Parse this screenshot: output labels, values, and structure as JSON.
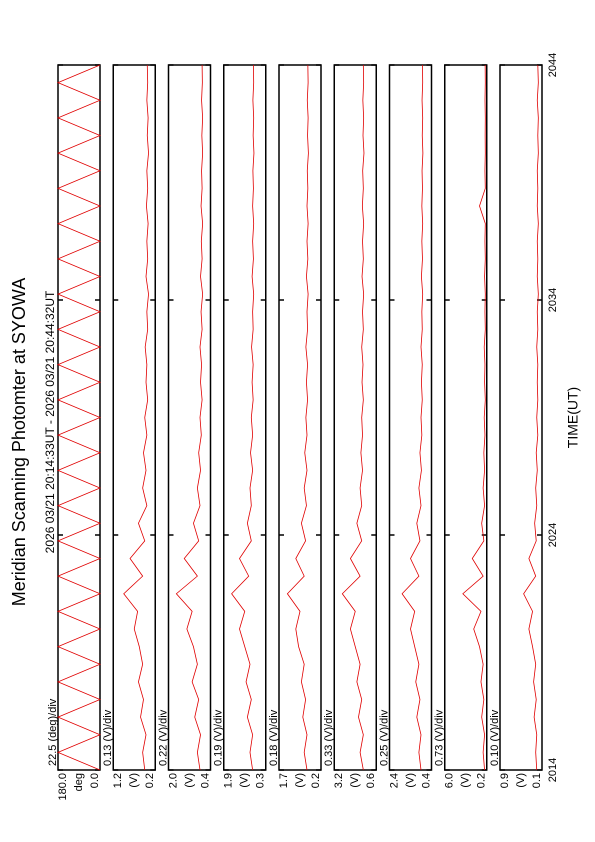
{
  "chart_data": [
    {
      "type": "line",
      "title": "Meridian Scanning Photomter at SYOWA",
      "subtitle": "2026 03/21 20:14:33UT - 2026 03/21 20:44:32UT",
      "scale": "22.5 (deg)/div",
      "ylabel": "deg",
      "color": "#e00000",
      "ylim": [
        0,
        180
      ],
      "yticks": [
        {
          "value": 0,
          "label": "0.0"
        },
        {
          "value": 180,
          "label": "180.0"
        }
      ],
      "x": [
        0,
        0.75,
        1.5,
        2.25,
        3,
        3.75,
        4.5,
        5.25,
        6,
        6.75,
        7.5,
        8.25,
        9,
        9.75,
        10.5,
        11.25,
        12,
        12.75,
        13.5,
        14.25,
        15,
        15.75,
        16.5,
        17.25,
        18,
        18.75,
        19.5,
        20.25,
        21,
        21.75,
        22.5,
        23.25,
        24,
        24.75,
        25.5,
        26.25,
        27,
        27.75,
        28.5,
        29.25,
        30
      ],
      "values": [
        0,
        180,
        0,
        180,
        0,
        180,
        0,
        180,
        0,
        180,
        0,
        180,
        0,
        180,
        0,
        180,
        0,
        180,
        0,
        180,
        0,
        180,
        0,
        180,
        0,
        180,
        0,
        180,
        0,
        180,
        0,
        180,
        0,
        180,
        0,
        180,
        0,
        180,
        0,
        180,
        0
      ]
    },
    {
      "type": "line",
      "scale": "0.13 (V)/div",
      "ylabel": "(V)",
      "color": "#e00000",
      "ylim": [
        0.2,
        1.2
      ],
      "yticks": [
        0.2,
        1.2
      ],
      "x": [
        0,
        0.75,
        1.5,
        2.25,
        3,
        3.75,
        4.5,
        5.25,
        6,
        6.75,
        7.5,
        8.25,
        9,
        9.75,
        10.5,
        11.25,
        12,
        12.75,
        13.5,
        14.25,
        15,
        15.75,
        16.5,
        17.25,
        18,
        18.75,
        19.5,
        20.25,
        21,
        21.75,
        22.5,
        23.25,
        24,
        24.75,
        25.5,
        26.25,
        27,
        27.75,
        28.5,
        29.25,
        30
      ],
      "values": [
        0.45,
        0.5,
        0.42,
        0.55,
        0.48,
        0.6,
        0.5,
        0.58,
        0.7,
        0.62,
        0.95,
        0.5,
        0.8,
        0.45,
        0.6,
        0.4,
        0.5,
        0.42,
        0.48,
        0.4,
        0.45,
        0.38,
        0.42,
        0.4,
        0.44,
        0.38,
        0.4,
        0.36,
        0.42,
        0.38,
        0.4,
        0.37,
        0.41,
        0.38,
        0.4,
        0.36,
        0.39,
        0.37,
        0.4,
        0.38,
        0.39
      ]
    },
    {
      "type": "line",
      "scale": "0.22 (V)/div",
      "ylabel": "(V)",
      "color": "#e00000",
      "ylim": [
        0.4,
        2.0
      ],
      "yticks": [
        0.4,
        {
          "value": 2,
          "label": "2.0"
        }
      ],
      "x": [
        0,
        0.75,
        1.5,
        2.25,
        3,
        3.75,
        4.5,
        5.25,
        6,
        6.75,
        7.5,
        8.25,
        9,
        9.75,
        10.5,
        11.25,
        12,
        12.75,
        13.5,
        14.25,
        15,
        15.75,
        16.5,
        17.25,
        18,
        18.75,
        19.5,
        20.25,
        21,
        21.75,
        22.5,
        23.25,
        24,
        24.75,
        25.5,
        26.25,
        27,
        27.75,
        28.5,
        29.25,
        30
      ],
      "values": [
        0.8,
        0.9,
        0.78,
        1.0,
        0.85,
        1.1,
        0.9,
        1.05,
        1.3,
        1.1,
        1.7,
        0.9,
        1.4,
        0.85,
        1.05,
        0.8,
        0.9,
        0.78,
        0.85,
        0.75,
        0.8,
        0.72,
        0.78,
        0.74,
        0.8,
        0.72,
        0.76,
        0.7,
        0.78,
        0.72,
        0.75,
        0.7,
        0.76,
        0.72,
        0.74,
        0.7,
        0.73,
        0.7,
        0.74,
        0.71,
        0.72
      ]
    },
    {
      "type": "line",
      "scale": "0.19 (V)/div",
      "ylabel": "(V)",
      "color": "#e00000",
      "ylim": [
        0.3,
        1.9
      ],
      "yticks": [
        0.3,
        1.9
      ],
      "x": [
        0,
        0.75,
        1.5,
        2.25,
        3,
        3.75,
        4.5,
        5.25,
        6,
        6.75,
        7.5,
        8.25,
        9,
        9.75,
        10.5,
        11.25,
        12,
        12.75,
        13.5,
        14.25,
        15,
        15.75,
        16.5,
        17.25,
        18,
        18.75,
        19.5,
        20.25,
        21,
        21.75,
        22.5,
        23.25,
        24,
        24.75,
        25.5,
        26.25,
        27,
        27.75,
        28.5,
        29.25,
        30
      ],
      "values": [
        0.8,
        0.9,
        0.8,
        1.0,
        0.85,
        1.05,
        0.9,
        1.1,
        1.3,
        1.1,
        1.6,
        0.95,
        1.3,
        0.85,
        1.0,
        0.85,
        0.9,
        0.8,
        0.88,
        0.8,
        0.85,
        0.78,
        0.82,
        0.78,
        0.84,
        0.78,
        0.8,
        0.76,
        0.82,
        0.77,
        0.8,
        0.76,
        0.8,
        0.77,
        0.79,
        0.75,
        0.78,
        0.76,
        0.79,
        0.76,
        0.77
      ]
    },
    {
      "type": "line",
      "scale": "0.18 (V)/div",
      "ylabel": "(V)",
      "color": "#e00000",
      "ylim": [
        0.2,
        1.7
      ],
      "yticks": [
        0.2,
        1.7
      ],
      "x": [
        0,
        0.75,
        1.5,
        2.25,
        3,
        3.75,
        4.5,
        5.25,
        6,
        6.75,
        7.5,
        8.25,
        9,
        9.75,
        10.5,
        11.25,
        12,
        12.75,
        13.5,
        14.25,
        15,
        15.75,
        16.5,
        17.25,
        18,
        18.75,
        19.5,
        20.25,
        21,
        21.75,
        22.5,
        23.25,
        24,
        24.75,
        25.5,
        26.25,
        27,
        27.75,
        28.5,
        29.25,
        30
      ],
      "values": [
        0.7,
        0.8,
        0.7,
        0.85,
        0.75,
        0.9,
        0.8,
        1.0,
        1.1,
        0.95,
        1.4,
        0.8,
        1.1,
        0.75,
        0.9,
        0.72,
        0.8,
        0.7,
        0.78,
        0.7,
        0.74,
        0.68,
        0.72,
        0.68,
        0.74,
        0.68,
        0.7,
        0.66,
        0.72,
        0.67,
        0.7,
        0.66,
        0.7,
        0.67,
        0.69,
        0.65,
        0.68,
        0.66,
        0.69,
        0.66,
        0.67
      ]
    },
    {
      "type": "line",
      "scale": "0.33 (V)/div",
      "ylabel": "(V)",
      "color": "#e00000",
      "ylim": [
        0.6,
        3.2
      ],
      "yticks": [
        0.6,
        3.2
      ],
      "x": [
        0,
        0.75,
        1.5,
        2.25,
        3,
        3.75,
        4.5,
        5.25,
        6,
        6.75,
        7.5,
        8.25,
        9,
        9.75,
        10.5,
        11.25,
        12,
        12.75,
        13.5,
        14.25,
        15,
        15.75,
        16.5,
        17.25,
        18,
        18.75,
        19.5,
        20.25,
        21,
        21.75,
        22.5,
        23.25,
        24,
        24.75,
        25.5,
        26.25,
        27,
        27.75,
        28.5,
        29.25,
        30
      ],
      "values": [
        1.4,
        1.6,
        1.4,
        1.7,
        1.5,
        1.8,
        1.6,
        1.9,
        2.2,
        1.9,
        2.7,
        1.6,
        2.2,
        1.5,
        1.8,
        1.5,
        1.6,
        1.45,
        1.55,
        1.45,
        1.5,
        1.4,
        1.48,
        1.42,
        1.5,
        1.4,
        1.45,
        1.38,
        1.48,
        1.4,
        1.45,
        1.38,
        1.46,
        1.4,
        1.44,
        1.36,
        1.42,
        1.38,
        1.43,
        1.38,
        1.4
      ]
    },
    {
      "type": "line",
      "scale": "0.25 (V)/div",
      "ylabel": "(V)",
      "color": "#e00000",
      "ylim": [
        0.4,
        2.4
      ],
      "yticks": [
        0.4,
        2.4
      ],
      "x": [
        0,
        0.75,
        1.5,
        2.25,
        3,
        3.75,
        4.5,
        5.25,
        6,
        6.75,
        7.5,
        8.25,
        9,
        9.75,
        10.5,
        11.25,
        12,
        12.75,
        13.5,
        14.25,
        15,
        15.75,
        16.5,
        17.25,
        18,
        18.75,
        19.5,
        20.25,
        21,
        21.75,
        22.5,
        23.25,
        24,
        24.75,
        25.5,
        26.25,
        27,
        27.75,
        28.5,
        29.25,
        30
      ],
      "values": [
        0.9,
        1.0,
        0.9,
        1.1,
        0.95,
        1.15,
        1.0,
        1.2,
        1.4,
        1.2,
        1.8,
        1.0,
        1.4,
        0.95,
        1.1,
        0.9,
        1.0,
        0.88,
        0.95,
        0.86,
        0.9,
        0.84,
        0.88,
        0.84,
        0.9,
        0.84,
        0.86,
        0.82,
        0.88,
        0.83,
        0.86,
        0.82,
        0.86,
        0.83,
        0.85,
        0.81,
        0.84,
        0.82,
        0.85,
        0.82,
        0.83
      ]
    },
    {
      "type": "line",
      "scale": "0.73 (V)/div",
      "ylabel": "(V)",
      "color": "#e00000",
      "ylim": [
        0.2,
        6.0
      ],
      "yticks": [
        0.2,
        {
          "value": 6,
          "label": "6.0"
        }
      ],
      "x": [
        0,
        0.75,
        1.5,
        2.25,
        3,
        3.75,
        4.5,
        5.25,
        6,
        6.75,
        7.5,
        8.25,
        9,
        9.75,
        10.5,
        11.25,
        12,
        12.75,
        13.5,
        14.25,
        15,
        15.75,
        16.5,
        17.25,
        18,
        18.75,
        19.5,
        20.25,
        21,
        21.75,
        22.5,
        23.25,
        24,
        24.75,
        25.5,
        26.25,
        27,
        27.75,
        28.5,
        29.25,
        30
      ],
      "values": [
        0.5,
        0.7,
        0.5,
        0.9,
        0.6,
        1.0,
        0.7,
        1.2,
        2.0,
        1.0,
        3.5,
        0.7,
        2.2,
        0.6,
        0.9,
        0.5,
        0.7,
        0.5,
        0.6,
        0.45,
        0.55,
        0.4,
        0.5,
        0.45,
        0.55,
        0.4,
        0.45,
        0.4,
        0.5,
        0.4,
        0.45,
        0.4,
        1.2,
        0.4,
        0.45,
        0.4,
        0.42,
        0.4,
        0.44,
        0.4,
        0.42
      ]
    },
    {
      "type": "line",
      "scale": "0.10 (V)/div",
      "ylabel": "(V)",
      "color": "#e00000",
      "xlabel": "TIME(UT)",
      "ylim": [
        0.1,
        0.9
      ],
      "yticks": [
        0.1,
        0.9
      ],
      "xlim": [
        0,
        30
      ],
      "xticks": [
        {
          "value": 0,
          "label": "2014"
        },
        {
          "value": 10,
          "label": "2024"
        },
        {
          "value": 20,
          "label": "2034"
        },
        {
          "value": 30,
          "label": "2044"
        }
      ],
      "x": [
        0,
        0.75,
        1.5,
        2.25,
        3,
        3.75,
        4.5,
        5.25,
        6,
        6.75,
        7.5,
        8.25,
        9,
        9.75,
        10.5,
        11.25,
        12,
        12.75,
        13.5,
        14.25,
        15,
        15.75,
        16.5,
        17.25,
        18,
        18.75,
        19.5,
        20.25,
        21,
        21.75,
        22.5,
        23.25,
        24,
        24.75,
        25.5,
        26.25,
        27,
        27.75,
        28.5,
        29.25,
        30
      ],
      "values": [
        0.2,
        0.22,
        0.2,
        0.25,
        0.21,
        0.26,
        0.22,
        0.28,
        0.35,
        0.28,
        0.45,
        0.22,
        0.35,
        0.21,
        0.24,
        0.2,
        0.22,
        0.19,
        0.21,
        0.18,
        0.2,
        0.18,
        0.19,
        0.18,
        0.2,
        0.18,
        0.19,
        0.17,
        0.19,
        0.18,
        0.19,
        0.17,
        0.19,
        0.18,
        0.19,
        0.17,
        0.18,
        0.17,
        0.19,
        0.17,
        0.18
      ]
    }
  ]
}
